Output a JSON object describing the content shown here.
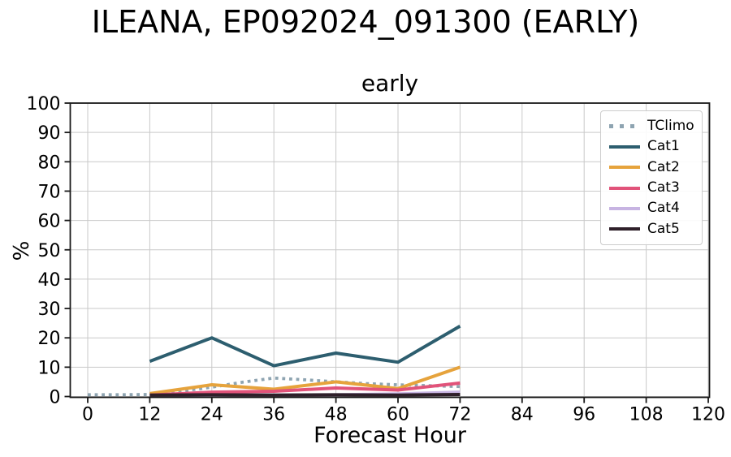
{
  "chart_data": {
    "type": "line",
    "suptitle": "ILEANA, EP092024_091300 (EARLY)",
    "title": "early",
    "xlabel": "Forecast Hour",
    "ylabel": "%",
    "xlim": [
      0,
      120
    ],
    "ylim": [
      0,
      100
    ],
    "xticks": [
      0,
      12,
      24,
      36,
      48,
      60,
      72,
      84,
      96,
      108,
      120
    ],
    "yticks": [
      0,
      10,
      20,
      30,
      40,
      50,
      60,
      70,
      80,
      90,
      100
    ],
    "grid": true,
    "grid_color": "#c9c9c9",
    "legend_position": "upper right",
    "series": [
      {
        "name": "TClimo",
        "color": "#8ea4b1",
        "style": "dotted",
        "x": [
          0,
          6,
          12,
          18,
          24,
          30,
          36,
          42,
          48,
          54,
          60,
          66,
          72
        ],
        "y": [
          0.6,
          0.6,
          0.7,
          1.8,
          3.2,
          4.9,
          6.3,
          5.7,
          5.0,
          4.4,
          4.0,
          3.7,
          3.4
        ]
      },
      {
        "name": "Cat1",
        "color": "#2d5e6f",
        "style": "solid",
        "x": [
          12,
          24,
          36,
          48,
          60,
          72
        ],
        "y": [
          12.0,
          20.0,
          10.5,
          14.8,
          11.7,
          24.0
        ]
      },
      {
        "name": "Cat2",
        "color": "#e6a33c",
        "style": "solid",
        "x": [
          12,
          24,
          36,
          48,
          60,
          72
        ],
        "y": [
          1.0,
          4.0,
          2.5,
          5.0,
          2.7,
          10.0
        ]
      },
      {
        "name": "Cat3",
        "color": "#e1537a",
        "style": "solid",
        "x": [
          12,
          24,
          36,
          48,
          60,
          72
        ],
        "y": [
          0.5,
          1.5,
          1.8,
          2.9,
          2.2,
          4.6
        ]
      },
      {
        "name": "Cat4",
        "color": "#c7b4e2",
        "style": "solid",
        "x": [
          12,
          24,
          36,
          48,
          60,
          72
        ],
        "y": [
          0.3,
          0.5,
          0.5,
          0.6,
          0.9,
          1.5
        ]
      },
      {
        "name": "Cat5",
        "color": "#2e1f29",
        "style": "solid",
        "x": [
          12,
          24,
          36,
          48,
          60,
          72
        ],
        "y": [
          0.5,
          0.6,
          0.5,
          0.6,
          0.5,
          0.7
        ]
      }
    ]
  }
}
